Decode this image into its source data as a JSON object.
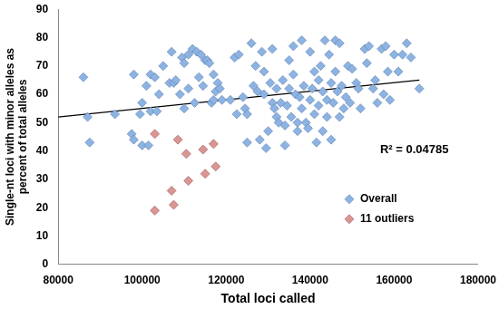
{
  "chart_data": {
    "type": "scatter",
    "x_label": "Total loci called",
    "y_label": [
      "Single-nt loci with minor alleles as",
      "percent of total alleles"
    ],
    "annotation": "R² = 0.04785",
    "xlim": [
      80000,
      180000
    ],
    "xticks": [
      80000,
      100000,
      120000,
      140000,
      160000,
      180000
    ],
    "ylim": [
      0,
      90
    ],
    "yticks": [
      0,
      10,
      20,
      30,
      40,
      50,
      60,
      70,
      80,
      90
    ],
    "grid": false,
    "legend": "lower right",
    "series": [
      {
        "name": "Overall",
        "color": "#8db3e2",
        "marker": "diamond",
        "x": [
          86000,
          87000,
          87500,
          93500,
          97500,
          98000,
          98000,
          99500,
          100000,
          100000,
          101000,
          101500,
          102000,
          102000,
          103000,
          103500,
          104000,
          105000,
          106500,
          107000,
          107500,
          108000,
          109000,
          109500,
          110000,
          110000,
          111000,
          111000,
          112000,
          112500,
          113000,
          113500,
          114000,
          114500,
          115000,
          115500,
          116000,
          116500,
          117000,
          117000,
          117500,
          118000,
          118500,
          119000,
          121000,
          122000,
          122500,
          123000,
          124000,
          124500,
          125000,
          125000,
          126000,
          126500,
          127000,
          127500,
          128000,
          128500,
          129000,
          129000,
          129500,
          130000,
          130500,
          131000,
          131000,
          131500,
          132000,
          132000,
          132500,
          133000,
          133500,
          134000,
          134000,
          134500,
          135000,
          135000,
          135500,
          136000,
          136000,
          136500,
          137000,
          137000,
          137500,
          138000,
          138000,
          138500,
          139000,
          139500,
          140000,
          140000,
          140500,
          141000,
          141000,
          141500,
          142000,
          142000,
          142500,
          143000,
          143000,
          143500,
          144000,
          144000,
          144500,
          145000,
          145000,
          145500,
          146000,
          146000,
          146500,
          147000,
          147000,
          147500,
          148000,
          148500,
          149000,
          149500,
          150000,
          151000,
          151500,
          152000,
          153000,
          153500,
          154000,
          155000,
          155500,
          156000,
          157000,
          157500,
          158000,
          158500,
          159000,
          160000,
          161000,
          162000,
          163000,
          164000,
          166000
        ],
        "values": [
          66,
          52,
          43,
          53,
          46,
          44,
          67,
          53,
          57,
          42,
          63,
          42,
          54,
          67,
          66,
          54,
          60,
          70,
          64,
          75,
          64,
          65,
          60,
          73,
          71,
          55,
          62,
          74,
          76,
          57,
          75,
          66,
          74,
          63,
          72,
          72,
          71,
          57,
          67,
          58,
          61,
          64,
          62,
          58,
          58,
          73,
          53,
          74,
          59,
          55,
          43,
          53,
          78,
          63,
          70,
          61,
          44,
          75,
          60,
          68,
          41,
          47,
          64,
          57,
          76,
          55,
          62,
          52,
          50,
          57,
          65,
          42,
          49,
          56,
          62,
          72,
          52,
          77,
          67,
          60,
          50,
          47,
          59,
          79,
          55,
          63,
          50,
          48,
          58,
          75,
          62,
          68,
          53,
          43,
          56,
          65,
          70,
          61,
          47,
          79,
          58,
          52,
          74,
          64,
          44,
          57,
          79,
          68,
          61,
          78,
          52,
          63,
          55,
          59,
          70,
          57,
          69,
          64,
          62,
          55,
          76,
          71,
          77,
          62,
          65,
          57,
          76,
          60,
          77,
          68,
          58,
          74,
          68,
          74,
          78,
          73,
          62
        ]
      },
      {
        "name": "11 outliers",
        "color": "#d99694",
        "marker": "diamond",
        "x": [
          103000,
          103000,
          107000,
          107500,
          108500,
          110500,
          111000,
          114500,
          115000,
          117000,
          117500
        ],
        "values": [
          46,
          19,
          26,
          21,
          44,
          39,
          29.5,
          40.5,
          32,
          42.5,
          34.5
        ]
      }
    ],
    "trendline": {
      "color": "#000000",
      "line_style": "solid",
      "x": [
        80000,
        166000
      ],
      "values": [
        52,
        65
      ]
    }
  }
}
